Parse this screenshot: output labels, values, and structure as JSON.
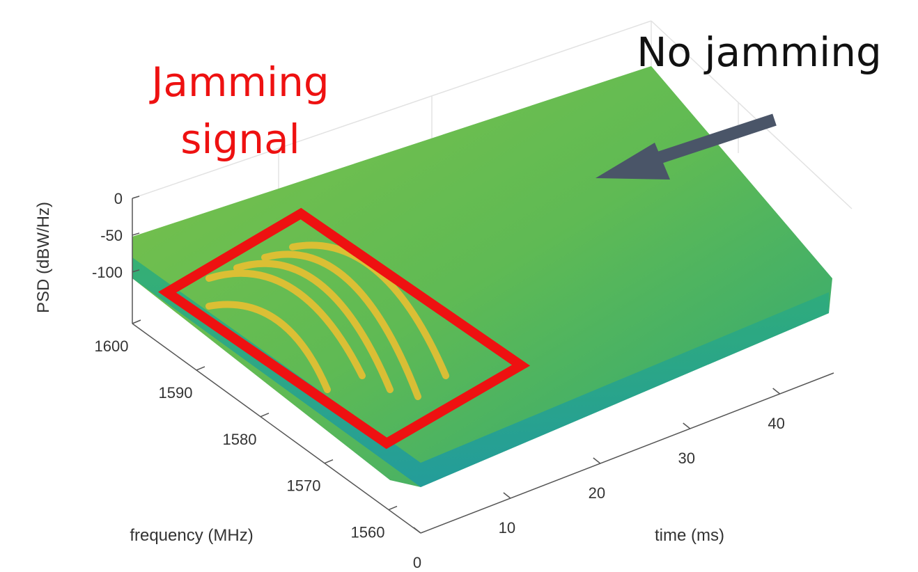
{
  "chart_data": {
    "type": "surface",
    "xlabel": "time (ms)",
    "ylabel": "frequency (MHz)",
    "zlabel": "PSD (dBW/Hz)",
    "xlim": [
      0,
      46
    ],
    "xticks": [
      0,
      10,
      20,
      30,
      40
    ],
    "ylim": [
      1555,
      1600
    ],
    "yticks": [
      1560,
      1570,
      1580,
      1590,
      1600
    ],
    "zlim": [
      -170,
      0
    ],
    "zticks": [
      -100,
      -50,
      0
    ],
    "jamming_label": [
      "Jamming",
      "signal"
    ],
    "jamming_color": "#ee1111",
    "no_jamming_label": "No jamming",
    "arrow_color": "#4a5568"
  }
}
